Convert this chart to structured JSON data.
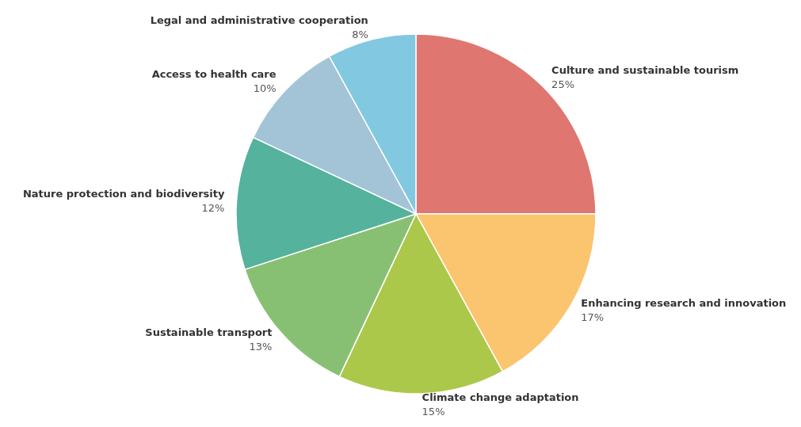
{
  "chart_data": {
    "type": "pie",
    "categories": [
      "Culture and sustainable tourism",
      "Enhancing research and innovation",
      "Climate change adaptation",
      "Sustainable transport",
      "Nature protection and biodiversity",
      "Access to health care",
      "Legal and administrative cooperation"
    ],
    "values": [
      25,
      17,
      15,
      13,
      12,
      10,
      8
    ],
    "colors": [
      "#e07670",
      "#fbc46e",
      "#acc84a",
      "#88c073",
      "#55b29c",
      "#a3c4d7",
      "#82c8e0"
    ],
    "value_labels": [
      "25%",
      "17%",
      "15%",
      "13%",
      "12%",
      "10%",
      "8%"
    ]
  }
}
